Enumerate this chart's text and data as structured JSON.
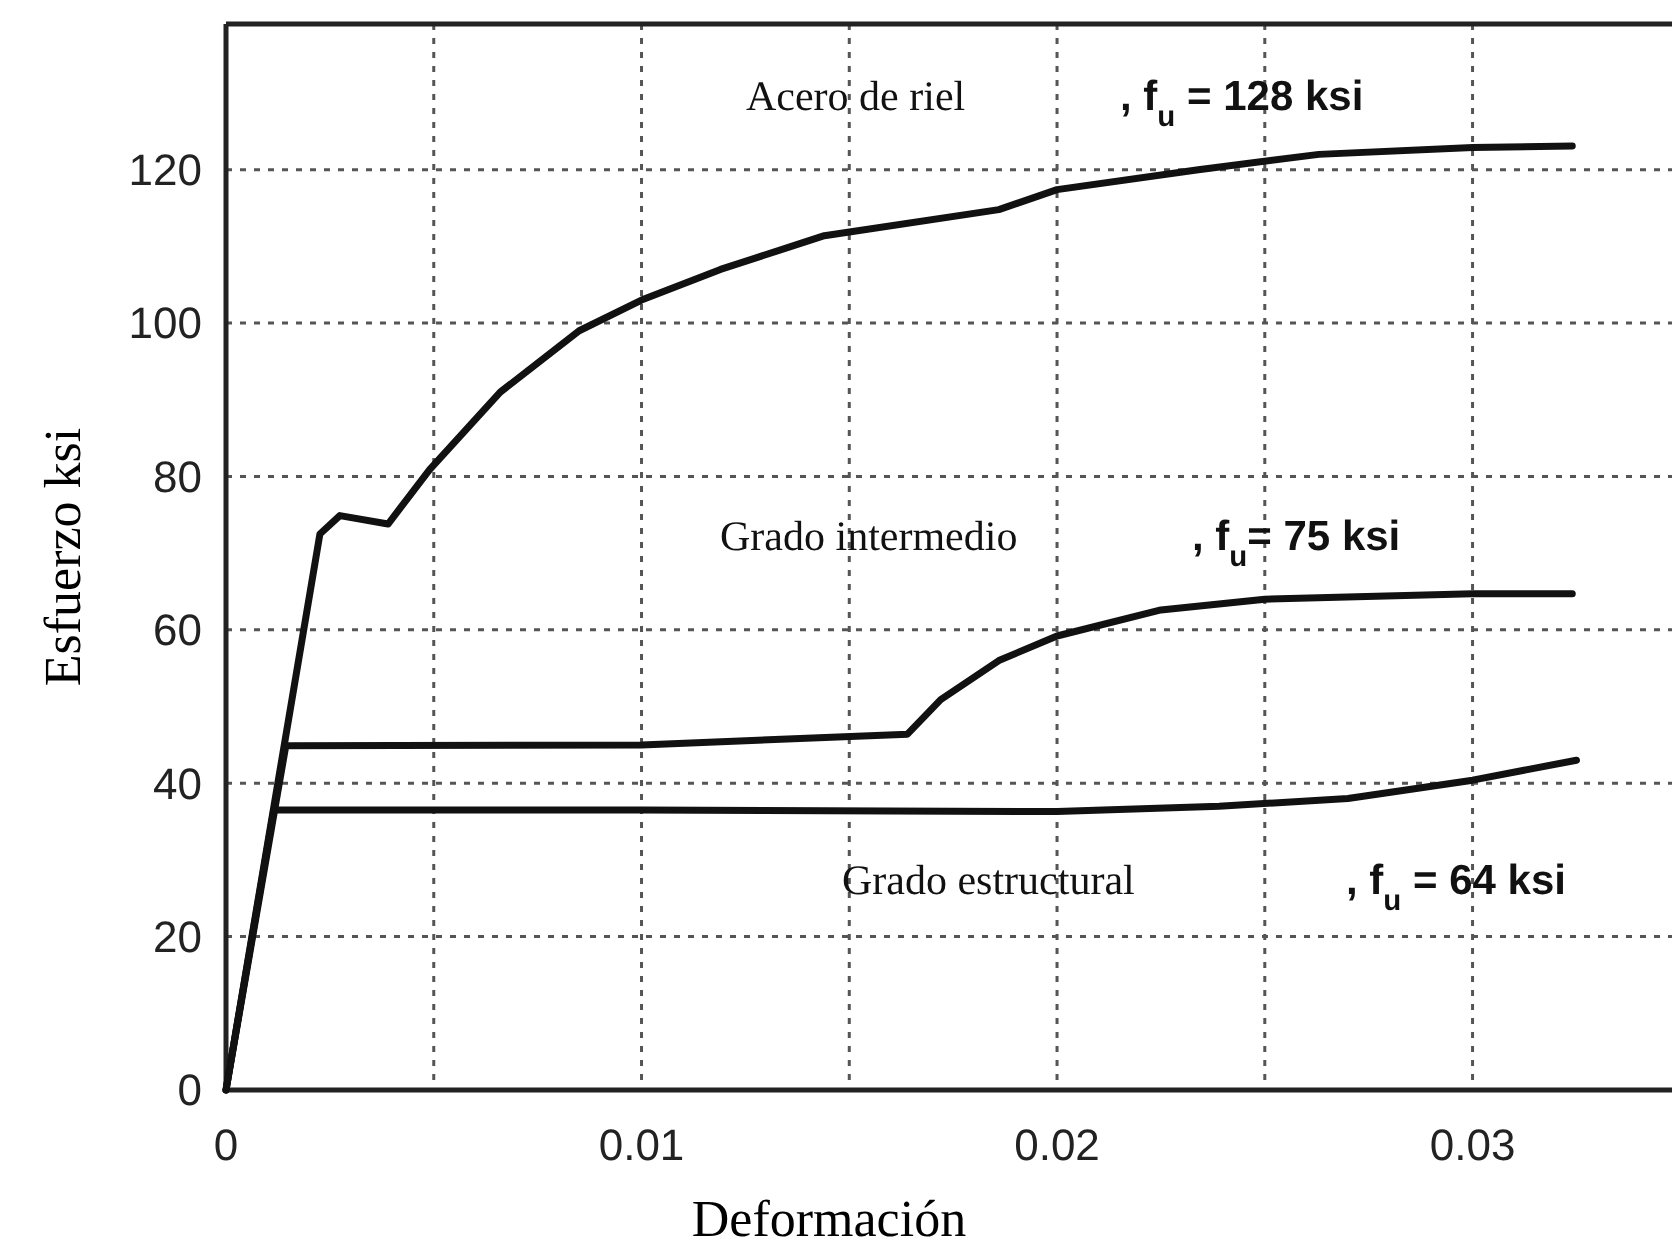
{
  "chart_data": {
    "type": "line",
    "xlabel": "Deformación",
    "ylabel": "Esfuerzo ksi",
    "xlim": [
      0,
      0.0348
    ],
    "ylim": [
      0,
      139
    ],
    "xticks": [
      0,
      {
        "value": 0.005,
        "label": null
      },
      0.01,
      {
        "value": 0.015,
        "label": null
      },
      0.02,
      {
        "value": 0.025,
        "label": null
      },
      0.03
    ],
    "yticks": [
      0,
      20,
      40,
      60,
      80,
      100,
      120
    ],
    "grid": true,
    "marker": "none",
    "line_style": "solid",
    "series": [
      {
        "name": "Acero de riel",
        "color": "#111111",
        "x": [
          0,
          0.00226,
          0.00274,
          0.0039,
          0.0049,
          0.0066,
          0.0085,
          0.01,
          0.0119,
          0.0144,
          0.0186,
          0.02,
          0.0234,
          0.0263,
          0.03,
          0.0324
        ],
        "values": [
          0,
          72.5,
          74.9,
          73.8,
          80.9,
          91,
          99,
          103,
          107,
          111.4,
          114.8,
          117.4,
          120,
          122,
          122.9,
          123.1
        ]
      },
      {
        "name": "Grado intermedio",
        "color": "#111111",
        "x": [
          0,
          0.00144,
          0.01,
          0.0164,
          0.0172,
          0.0186,
          0.02,
          0.0225,
          0.025,
          0.03,
          0.0324
        ],
        "values": [
          0,
          44.9,
          45,
          46.4,
          50.9,
          56,
          59.2,
          62.6,
          64,
          64.7,
          64.7
        ]
      },
      {
        "name": "Grado estructural",
        "color": "#111111",
        "x": [
          0,
          0.00115,
          0.01,
          0.02,
          0.0239,
          0.027,
          0.03,
          0.0325
        ],
        "values": [
          0,
          36.5,
          36.5,
          36.3,
          37,
          38,
          40.4,
          43
        ]
      }
    ],
    "annotations": [
      ", f$_{u}$ = 128 ksi",
      ", f$_{u}$= 75 ksi",
      ", f$_{u}$ = 64 ksi"
    ]
  }
}
